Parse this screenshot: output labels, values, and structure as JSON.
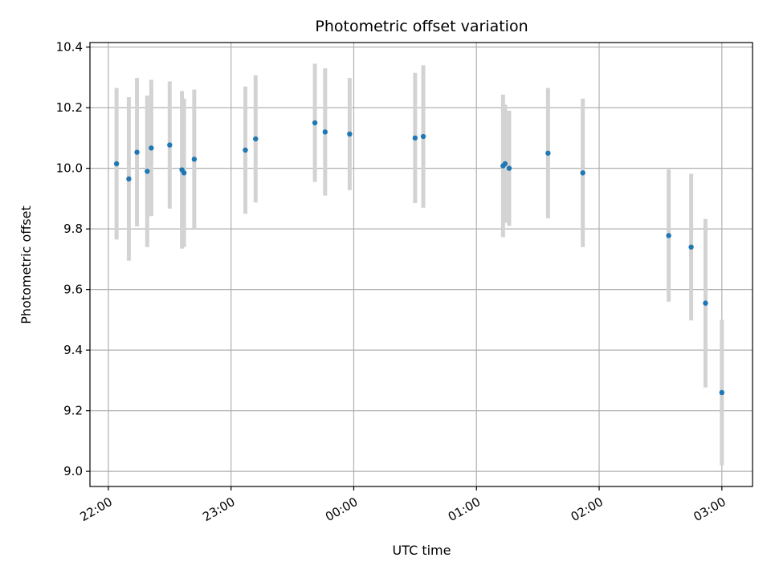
{
  "chart_data": {
    "type": "scatter",
    "title": "Photometric offset variation",
    "xlabel": "UTC time",
    "ylabel": "Photometric offset",
    "x_ticks": [
      "22:00",
      "23:00",
      "00:00",
      "01:00",
      "02:00",
      "03:00"
    ],
    "y_ticks": [
      "9.0",
      "9.2",
      "9.4",
      "9.6",
      "9.8",
      "10.0",
      "10.2",
      "10.4"
    ],
    "ylim": [
      8.95,
      10.415
    ],
    "xlim": [
      "21:51",
      "03:15"
    ],
    "grid": true,
    "errorbar_color": "#d3d3d3",
    "point_color": "#1f77b4",
    "points": [
      {
        "t": "22:04",
        "y": 10.015,
        "err": 0.25
      },
      {
        "t": "22:10",
        "y": 9.965,
        "err": 0.27
      },
      {
        "t": "22:14",
        "y": 10.053,
        "err": 0.245
      },
      {
        "t": "22:19",
        "y": 9.99,
        "err": 0.25
      },
      {
        "t": "22:21",
        "y": 10.067,
        "err": 0.225
      },
      {
        "t": "22:30",
        "y": 10.077,
        "err": 0.21
      },
      {
        "t": "22:36",
        "y": 9.995,
        "err": 0.26
      },
      {
        "t": "22:37",
        "y": 9.985,
        "err": 0.245
      },
      {
        "t": "22:42",
        "y": 10.03,
        "err": 0.23
      },
      {
        "t": "23:07",
        "y": 10.06,
        "err": 0.21
      },
      {
        "t": "23:12",
        "y": 10.097,
        "err": 0.21
      },
      {
        "t": "23:41",
        "y": 10.15,
        "err": 0.195
      },
      {
        "t": "23:46",
        "y": 10.12,
        "err": 0.21
      },
      {
        "t": "23:58",
        "y": 10.113,
        "err": 0.185
      },
      {
        "t": "00:30",
        "y": 10.1,
        "err": 0.215
      },
      {
        "t": "00:34",
        "y": 10.105,
        "err": 0.235
      },
      {
        "t": "01:13",
        "y": 10.008,
        "err": 0.235
      },
      {
        "t": "01:14",
        "y": 10.015,
        "err": 0.195
      },
      {
        "t": "01:16",
        "y": 10.0,
        "err": 0.19
      },
      {
        "t": "01:35",
        "y": 10.05,
        "err": 0.215
      },
      {
        "t": "01:52",
        "y": 9.985,
        "err": 0.245
      },
      {
        "t": "02:34",
        "y": 9.778,
        "err": 0.218
      },
      {
        "t": "02:45",
        "y": 9.74,
        "err": 0.242
      },
      {
        "t": "02:52",
        "y": 9.555,
        "err": 0.278
      },
      {
        "t": "03:00",
        "y": 9.26,
        "err": 0.24
      }
    ]
  }
}
